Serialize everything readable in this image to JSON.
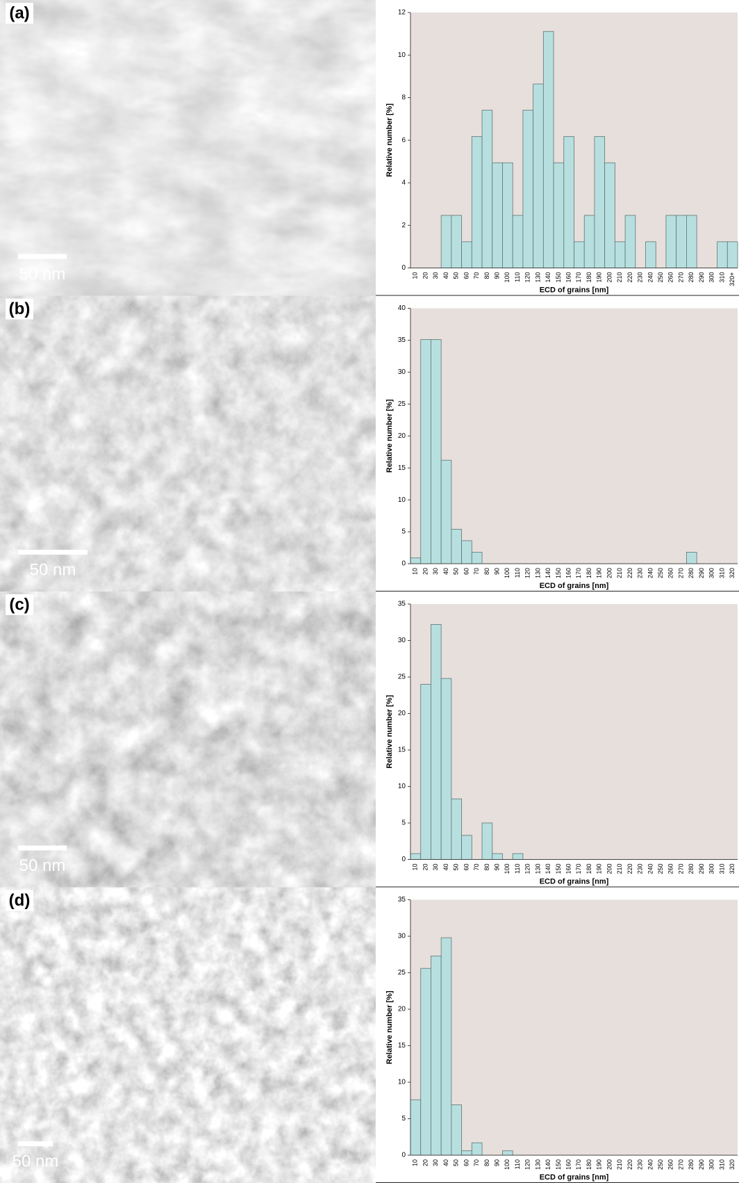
{
  "chart_data": [
    {
      "type": "bar",
      "xlabel": "ECD of grains [nm]",
      "ylabel": "Relative number [%]",
      "color": "#b7dfdf",
      "categories": [
        "10",
        "20",
        "30",
        "40",
        "50",
        "60",
        "70",
        "80",
        "90",
        "100",
        "110",
        "120",
        "130",
        "140",
        "150",
        "160",
        "170",
        "180",
        "190",
        "200",
        "210",
        "220",
        "230",
        "240",
        "250",
        "260",
        "270",
        "280",
        "290",
        "300",
        "310",
        "320+"
      ],
      "values": [
        0,
        0,
        0,
        2.47,
        2.47,
        1.23,
        6.17,
        7.41,
        4.94,
        4.94,
        2.47,
        7.41,
        8.64,
        11.11,
        4.94,
        6.17,
        1.23,
        2.47,
        6.17,
        4.94,
        1.23,
        2.47,
        0,
        1.23,
        0,
        2.47,
        2.47,
        2.47,
        0,
        0,
        1.23,
        1.23
      ],
      "ylim": [
        0,
        12
      ],
      "yticks": [
        0,
        2,
        4,
        6,
        8,
        10,
        12
      ]
    },
    {
      "type": "bar",
      "xlabel": "ECD of grains [nm]",
      "ylabel": "Relative number [%]",
      "color": "#b7dfdf",
      "categories": [
        "10",
        "20",
        "30",
        "40",
        "50",
        "60",
        "70",
        "80",
        "90",
        "100",
        "110",
        "120",
        "130",
        "140",
        "150",
        "160",
        "170",
        "180",
        "190",
        "200",
        "210",
        "220",
        "230",
        "240",
        "250",
        "260",
        "270",
        "280",
        "290",
        "300",
        "310",
        "320"
      ],
      "values": [
        0.9,
        35.1,
        35.1,
        16.2,
        5.4,
        3.6,
        1.8,
        0,
        0,
        0,
        0,
        0,
        0,
        0,
        0,
        0,
        0,
        0,
        0,
        0,
        0,
        0,
        0,
        0,
        0,
        0,
        0,
        1.8,
        0,
        0,
        0,
        0
      ],
      "ylim": [
        0,
        40
      ],
      "yticks": [
        0,
        5,
        10,
        15,
        20,
        25,
        30,
        35,
        40
      ]
    },
    {
      "type": "bar",
      "xlabel": "ECD of grains [nm]",
      "ylabel": "Relative number [%]",
      "color": "#b7dfdf",
      "categories": [
        "10",
        "20",
        "30",
        "40",
        "50",
        "60",
        "70",
        "80",
        "90",
        "100",
        "110",
        "120",
        "130",
        "140",
        "150",
        "160",
        "170",
        "180",
        "190",
        "200",
        "210",
        "220",
        "230",
        "240",
        "250",
        "260",
        "270",
        "280",
        "290",
        "300",
        "310",
        "320"
      ],
      "values": [
        0.8,
        24,
        32.2,
        24.8,
        8.3,
        3.3,
        0,
        5,
        0.8,
        0,
        0.8,
        0,
        0,
        0,
        0,
        0,
        0,
        0,
        0,
        0,
        0,
        0,
        0,
        0,
        0,
        0,
        0,
        0,
        0,
        0,
        0,
        0
      ],
      "ylim": [
        0,
        35
      ],
      "yticks": [
        0,
        5,
        10,
        15,
        20,
        25,
        30,
        35
      ]
    },
    {
      "type": "bar",
      "xlabel": "ECD of grains [nm]",
      "ylabel": "Relative number [%]",
      "color": "#b7dfdf",
      "categories": [
        "10",
        "20",
        "30",
        "40",
        "50",
        "60",
        "70",
        "80",
        "90",
        "100",
        "110",
        "120",
        "130",
        "140",
        "150",
        "160",
        "170",
        "180",
        "190",
        "200",
        "210",
        "220",
        "230",
        "240",
        "250",
        "260",
        "270",
        "280",
        "290",
        "300",
        "310",
        "320"
      ],
      "values": [
        7.6,
        25.6,
        27.3,
        29.8,
        6.9,
        0.6,
        1.7,
        0,
        0,
        0.6,
        0,
        0,
        0,
        0,
        0,
        0,
        0,
        0,
        0,
        0,
        0,
        0,
        0,
        0,
        0,
        0,
        0,
        0,
        0,
        0,
        0,
        0
      ],
      "ylim": [
        0,
        35
      ],
      "yticks": [
        0,
        5,
        10,
        15,
        20,
        25,
        30,
        35
      ]
    }
  ],
  "panels": [
    {
      "label": "(a)",
      "scale_bar": "50 nm"
    },
    {
      "label": "(b)",
      "scale_bar": "50 nm"
    },
    {
      "label": "(c)",
      "scale_bar": "50 nm"
    },
    {
      "label": "(d)",
      "scale_bar": "50 nm"
    }
  ]
}
